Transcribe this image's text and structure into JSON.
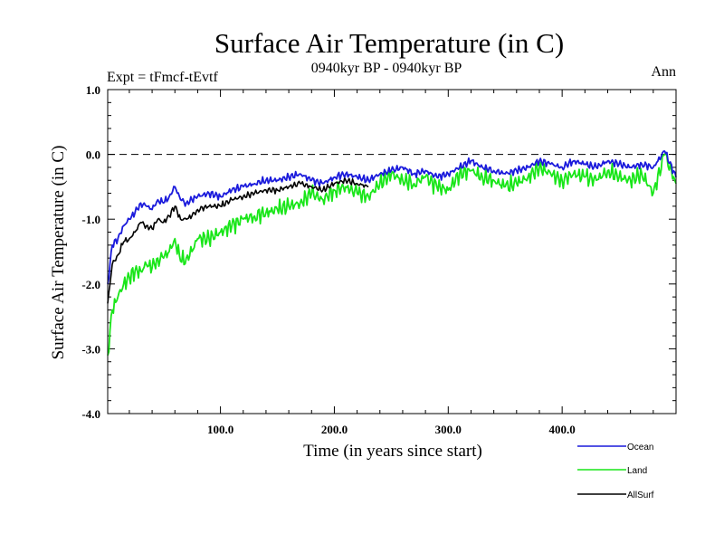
{
  "chart_data": {
    "type": "line",
    "title": "Surface Air Temperature (in C)",
    "subtitle": "0940kyr BP - 0940kyr BP",
    "left_label": "Expt = tFmcf-tEvtf",
    "right_label": "Ann",
    "xlabel": "Time (in years since start)",
    "ylabel": "Surface Air Temperature (in C)",
    "xlim": [
      1,
      500
    ],
    "ylim": [
      -4.0,
      1.0
    ],
    "xticks": [
      100,
      200,
      300,
      400
    ],
    "xtick_labels": [
      "100.0",
      "200.0",
      "300.0",
      "400.0"
    ],
    "yticks": [
      1.0,
      0.0,
      -1.0,
      -2.0,
      -3.0,
      -4.0
    ],
    "ytick_labels": [
      "1.0",
      "0.0",
      "-1.0",
      "-2.0",
      "-3.0",
      "-4.0"
    ],
    "reference_line": 0.0,
    "series": [
      {
        "name": "Ocean",
        "color": "#1a1adc",
        "x": [
          1,
          5,
          10,
          15,
          20,
          25,
          30,
          35,
          40,
          45,
          50,
          55,
          60,
          65,
          70,
          75,
          80,
          90,
          100,
          110,
          120,
          130,
          140,
          150,
          160,
          170,
          180,
          190,
          200,
          210,
          220,
          230,
          240,
          250,
          260,
          270,
          280,
          290,
          300,
          310,
          320,
          330,
          340,
          350,
          360,
          370,
          380,
          390,
          400,
          410,
          420,
          430,
          440,
          450,
          460,
          470,
          480,
          490,
          500
        ],
        "values": [
          -2.0,
          -1.4,
          -1.3,
          -1.1,
          -1.0,
          -0.9,
          -0.75,
          -0.8,
          -0.85,
          -0.7,
          -0.75,
          -0.65,
          -0.5,
          -0.7,
          -0.75,
          -0.7,
          -0.65,
          -0.6,
          -0.65,
          -0.55,
          -0.5,
          -0.45,
          -0.4,
          -0.4,
          -0.35,
          -0.3,
          -0.4,
          -0.45,
          -0.35,
          -0.3,
          -0.35,
          -0.4,
          -0.3,
          -0.25,
          -0.2,
          -0.3,
          -0.25,
          -0.35,
          -0.3,
          -0.2,
          -0.1,
          -0.2,
          -0.25,
          -0.3,
          -0.25,
          -0.2,
          -0.1,
          -0.15,
          -0.2,
          -0.1,
          -0.15,
          -0.2,
          -0.1,
          -0.15,
          -0.2,
          -0.15,
          -0.2,
          0.05,
          -0.35
        ]
      },
      {
        "name": "Land",
        "color": "#19e619",
        "x": [
          1,
          5,
          10,
          15,
          20,
          25,
          30,
          35,
          40,
          45,
          50,
          55,
          60,
          65,
          70,
          75,
          80,
          90,
          100,
          110,
          120,
          130,
          140,
          150,
          160,
          170,
          180,
          190,
          200,
          210,
          220,
          230,
          240,
          250,
          260,
          270,
          280,
          290,
          300,
          310,
          320,
          330,
          340,
          350,
          360,
          370,
          380,
          390,
          400,
          410,
          420,
          430,
          440,
          450,
          460,
          470,
          480,
          490,
          500
        ],
        "values": [
          -3.1,
          -2.4,
          -2.2,
          -2.0,
          -1.9,
          -1.8,
          -1.8,
          -1.7,
          -1.75,
          -1.6,
          -1.6,
          -1.5,
          -1.3,
          -1.65,
          -1.6,
          -1.5,
          -1.3,
          -1.3,
          -1.2,
          -1.1,
          -1.0,
          -0.95,
          -0.9,
          -0.85,
          -0.8,
          -0.75,
          -0.6,
          -0.7,
          -0.55,
          -0.5,
          -0.6,
          -0.65,
          -0.45,
          -0.3,
          -0.4,
          -0.45,
          -0.35,
          -0.5,
          -0.55,
          -0.3,
          -0.25,
          -0.35,
          -0.4,
          -0.5,
          -0.45,
          -0.35,
          -0.2,
          -0.3,
          -0.4,
          -0.3,
          -0.35,
          -0.4,
          -0.25,
          -0.35,
          -0.4,
          -0.3,
          -0.6,
          0.0,
          -0.45
        ]
      },
      {
        "name": "AllSurf",
        "color": "#000000",
        "x": [
          1,
          5,
          10,
          15,
          20,
          25,
          30,
          35,
          40,
          45,
          50,
          55,
          60,
          65,
          70,
          75,
          80,
          90,
          100,
          110,
          120,
          130,
          140,
          150,
          160,
          170,
          180,
          190,
          200,
          210,
          220,
          230
        ],
        "values": [
          -2.3,
          -1.7,
          -1.55,
          -1.35,
          -1.3,
          -1.2,
          -1.05,
          -1.1,
          -1.15,
          -1.0,
          -1.05,
          -0.95,
          -0.8,
          -1.0,
          -1.0,
          -0.95,
          -0.85,
          -0.8,
          -0.8,
          -0.7,
          -0.65,
          -0.6,
          -0.55,
          -0.55,
          -0.5,
          -0.45,
          -0.5,
          -0.55,
          -0.45,
          -0.4,
          -0.45,
          -0.5
        ]
      }
    ],
    "legend": [
      {
        "name": "Ocean",
        "color": "#1a1adc"
      },
      {
        "name": "Land",
        "color": "#19e619"
      },
      {
        "name": "AllSurf",
        "color": "#000000"
      }
    ]
  }
}
